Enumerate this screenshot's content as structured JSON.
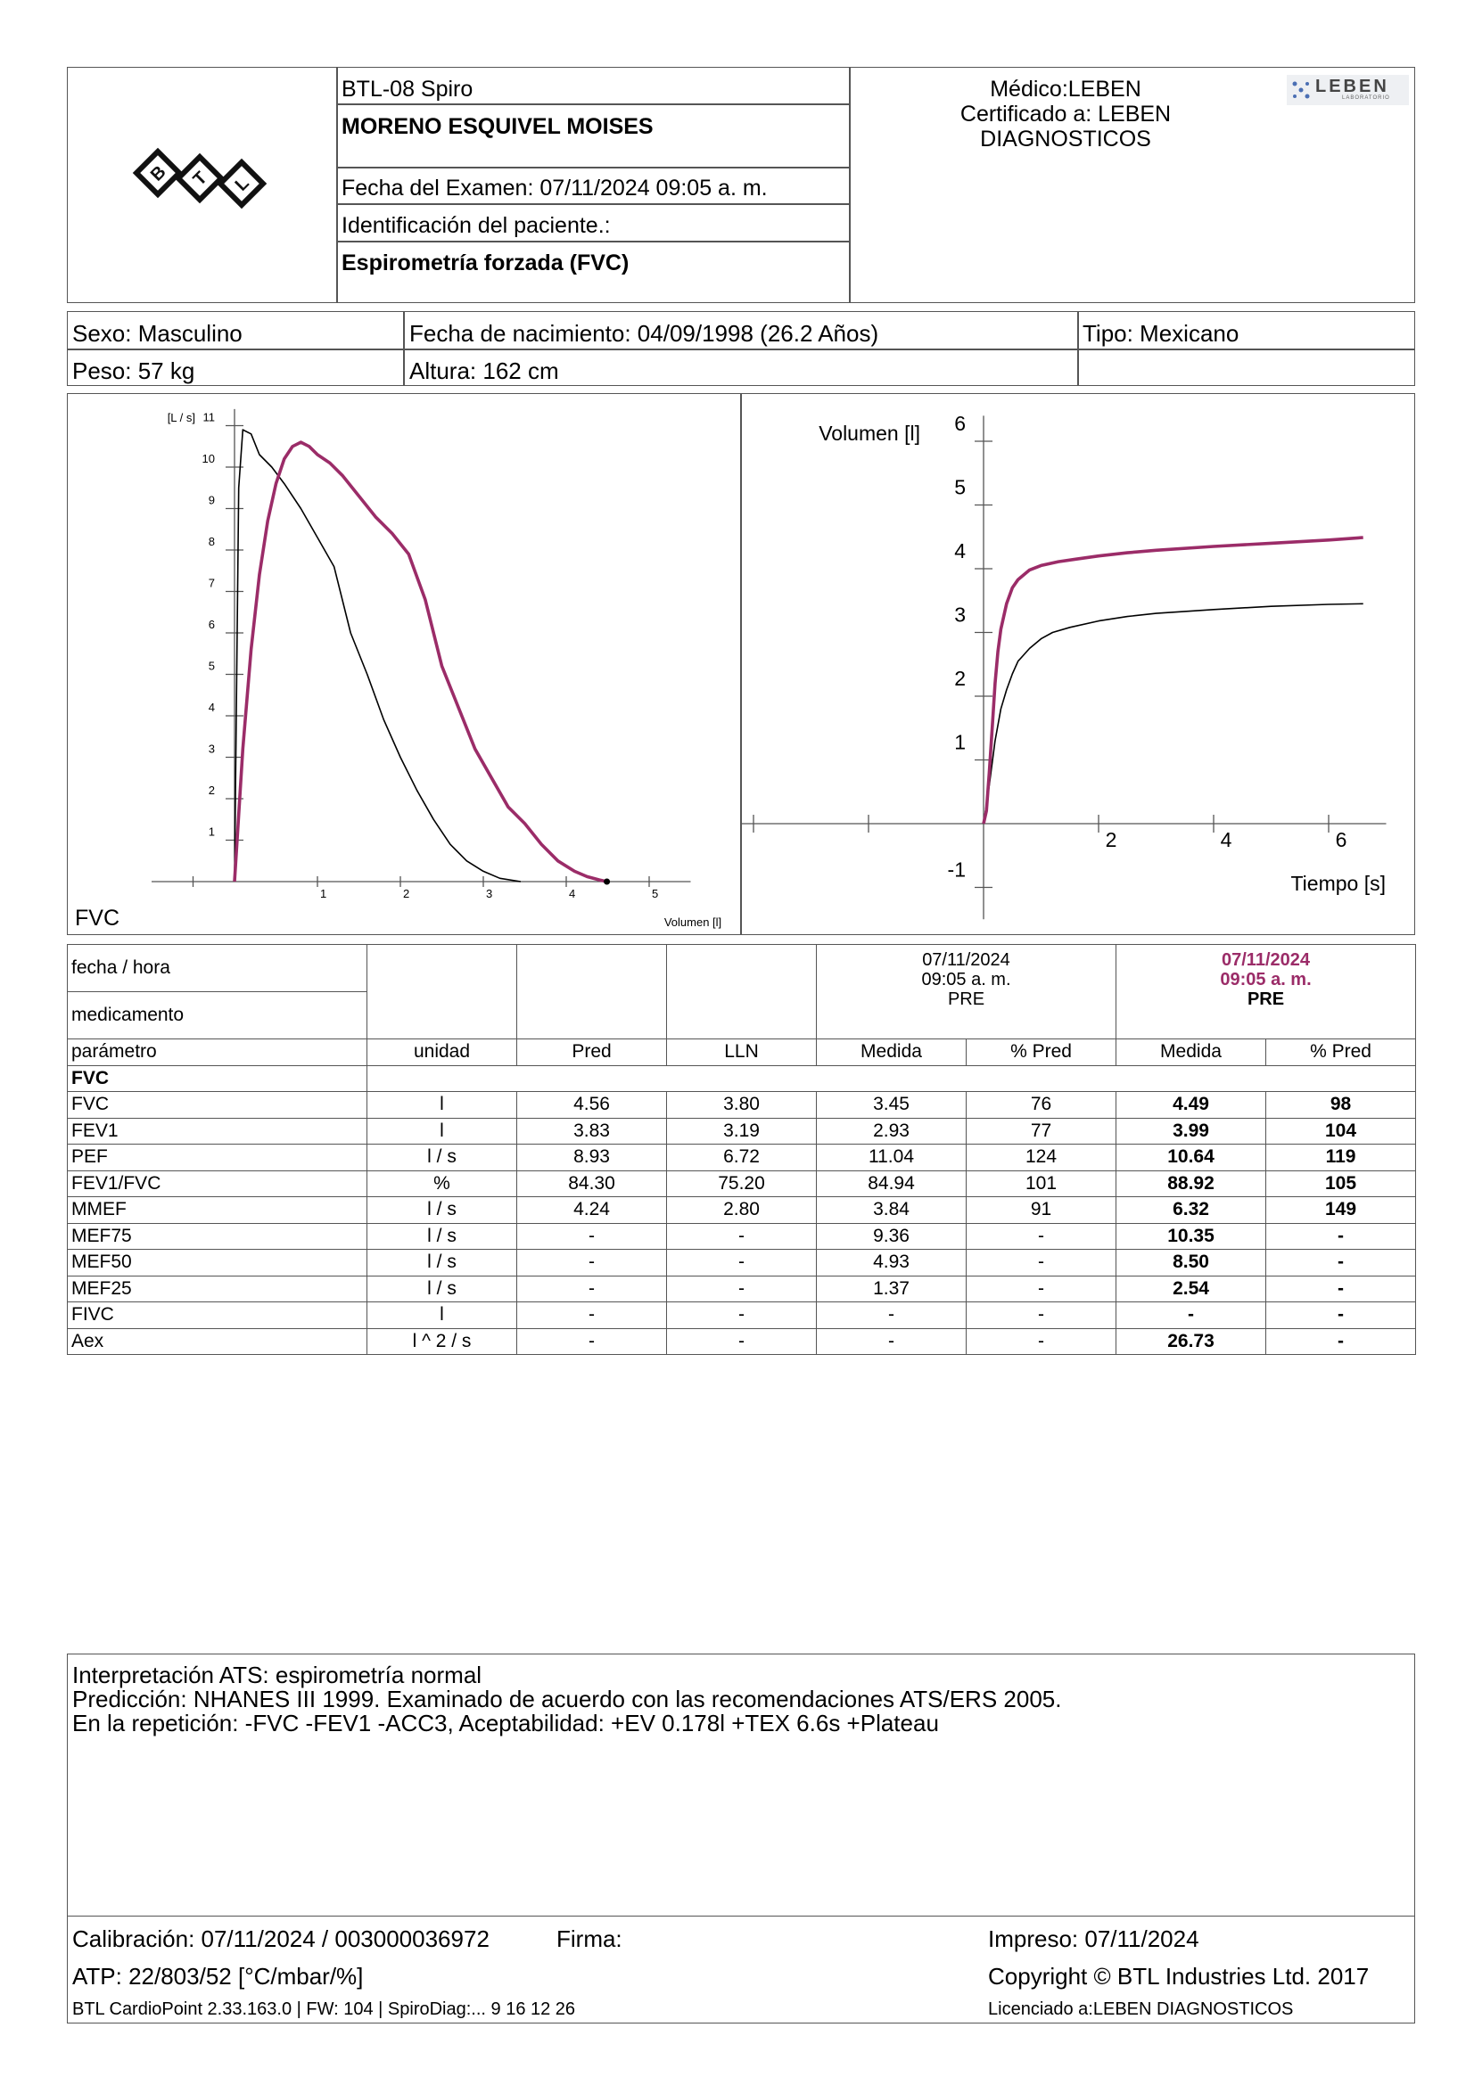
{
  "header": {
    "device": "BTL-08 Spiro",
    "patient_name": "MORENO ESQUIVEL MOISES",
    "exam_date": "Fecha del Examen:  07/11/2024 09:05 a. m.",
    "patient_id": "Identificación del paciente.:",
    "test_type": "Espirometría forzada (FVC)",
    "doctor_line1": "Médico:LEBEN",
    "doctor_line2": "Certificado a: LEBEN",
    "doctor_line3": "DIAGNOSTICOS",
    "lab_logo_text": "LEBEN",
    "lab_logo_sub": "LABORATORIO",
    "logo_text": "BTL"
  },
  "patient": {
    "sex": "Sexo: Masculino",
    "birth": "Fecha de nacimiento: 04/09/1998 (26.2 Años)",
    "type": "Tipo: Mexicano",
    "weight": "Peso: 57 kg",
    "height": "Altura: 162 cm"
  },
  "chart_data": [
    {
      "type": "line",
      "panel_label": "FVC",
      "ylabel": "[L / s]",
      "xlabel": "Volumen [l]",
      "xlim": [
        -1,
        5.5
      ],
      "ylim": [
        0,
        11
      ],
      "x_ticks": [
        "1",
        "2",
        "3",
        "4",
        "5"
      ],
      "y_ticks": [
        "1",
        "2",
        "3",
        "4",
        "5",
        "6",
        "7",
        "8",
        "9",
        "10",
        "11"
      ],
      "series": [
        {
          "color": "#000000",
          "x": [
            0,
            0.05,
            0.1,
            0.2,
            0.3,
            0.45,
            0.6,
            0.8,
            1.0,
            1.2,
            1.4,
            1.6,
            1.8,
            2.0,
            2.2,
            2.4,
            2.6,
            2.8,
            3.0,
            3.2,
            3.45
          ],
          "y": [
            0,
            9.5,
            10.9,
            10.8,
            10.3,
            10.0,
            9.6,
            9.0,
            8.3,
            7.6,
            6.0,
            5.0,
            3.9,
            3.0,
            2.2,
            1.5,
            0.9,
            0.5,
            0.25,
            0.08,
            0
          ]
        },
        {
          "color": "#9b2c68",
          "x": [
            0,
            0.1,
            0.2,
            0.3,
            0.4,
            0.5,
            0.6,
            0.7,
            0.8,
            0.9,
            1.0,
            1.15,
            1.3,
            1.5,
            1.7,
            1.9,
            2.1,
            2.3,
            2.5,
            2.7,
            2.9,
            3.1,
            3.3,
            3.5,
            3.7,
            3.9,
            4.1,
            4.25,
            4.4,
            4.49
          ],
          "y": [
            0,
            3.2,
            5.6,
            7.4,
            8.7,
            9.6,
            10.2,
            10.5,
            10.6,
            10.5,
            10.3,
            10.1,
            9.8,
            9.3,
            8.8,
            8.4,
            7.9,
            6.8,
            5.2,
            4.2,
            3.2,
            2.5,
            1.8,
            1.4,
            0.9,
            0.5,
            0.25,
            0.12,
            0.04,
            0
          ]
        }
      ]
    },
    {
      "type": "line",
      "ylabel": "Volumen [l]",
      "xlabel": "Tiempo [s]",
      "xlim": [
        -4,
        7
      ],
      "ylim": [
        -1.5,
        6.5
      ],
      "x_ticks": [
        "2",
        "4",
        "6"
      ],
      "y_ticks": [
        "-1",
        "1",
        "2",
        "3",
        "4",
        "5",
        "6"
      ],
      "series": [
        {
          "color": "#000000",
          "x": [
            0,
            0.1,
            0.2,
            0.3,
            0.4,
            0.5,
            0.6,
            0.8,
            1.0,
            1.2,
            1.5,
            2.0,
            2.5,
            3.0,
            4.0,
            5.0,
            6.0,
            6.6
          ],
          "y": [
            0,
            0.6,
            1.3,
            1.8,
            2.1,
            2.35,
            2.55,
            2.75,
            2.9,
            3.0,
            3.08,
            3.18,
            3.25,
            3.3,
            3.36,
            3.41,
            3.44,
            3.45
          ]
        },
        {
          "color": "#9b2c68",
          "x": [
            0,
            0.05,
            0.1,
            0.15,
            0.2,
            0.25,
            0.3,
            0.4,
            0.5,
            0.6,
            0.8,
            1.0,
            1.3,
            1.6,
            2.0,
            2.5,
            3.0,
            4.0,
            5.0,
            6.0,
            6.6
          ],
          "y": [
            0,
            0.2,
            0.8,
            1.5,
            2.2,
            2.7,
            3.05,
            3.45,
            3.7,
            3.83,
            3.98,
            4.05,
            4.11,
            4.15,
            4.2,
            4.25,
            4.29,
            4.35,
            4.4,
            4.45,
            4.49
          ]
        }
      ]
    }
  ],
  "results": {
    "row_date": "fecha / hora",
    "row_med": "medicamento",
    "col_a_date": "07/11/2024",
    "col_a_time": "09:05 a. m.",
    "col_a_med": "PRE",
    "col_b_date": "07/11/2024",
    "col_b_time": "09:05 a. m.",
    "col_b_med": "PRE",
    "headers": [
      "parámetro",
      "unidad",
      "Pred",
      "LLN",
      "Medida",
      "% Pred",
      "Medida",
      "% Pred"
    ],
    "section": "FVC",
    "rows": [
      [
        "FVC",
        "l",
        "4.56",
        "3.80",
        "3.45",
        "76",
        "4.49",
        "98"
      ],
      [
        "FEV1",
        "l",
        "3.83",
        "3.19",
        "2.93",
        "77",
        "3.99",
        "104"
      ],
      [
        "PEF",
        "l / s",
        "8.93",
        "6.72",
        "11.04",
        "124",
        "10.64",
        "119"
      ],
      [
        "FEV1/FVC",
        "%",
        "84.30",
        "75.20",
        "84.94",
        "101",
        "88.92",
        "105"
      ],
      [
        "MMEF",
        "l / s",
        "4.24",
        "2.80",
        "3.84",
        "91",
        "6.32",
        "149"
      ],
      [
        "MEF75",
        "l / s",
        "-",
        "-",
        "9.36",
        "-",
        "10.35",
        "-"
      ],
      [
        "MEF50",
        "l / s",
        "-",
        "-",
        "4.93",
        "-",
        "8.50",
        "-"
      ],
      [
        "MEF25",
        "l / s",
        "-",
        "-",
        "1.37",
        "-",
        "2.54",
        "-"
      ],
      [
        "FIVC",
        "l",
        "-",
        "-",
        "-",
        "-",
        "-",
        "-"
      ],
      [
        "Aex",
        "l ^ 2 / s",
        "-",
        "-",
        "-",
        "-",
        "26.73",
        "-"
      ]
    ]
  },
  "interpretation": {
    "line1": "Interpretación ATS: espirometría normal",
    "line2": "Predicción: NHANES III 1999. Examinado de acuerdo con las recomendaciones ATS/ERS 2005.",
    "line3": "En la repetición: -FVC -FEV1 -ACC3, Aceptabilidad: +EV 0.178l +TEX 6.6s +Plateau"
  },
  "footer": {
    "calibration": "Calibración: 07/11/2024 / 003000036972",
    "signature": "Firma:",
    "printed": "Impreso: 07/11/2024",
    "atp": "ATP: 22/803/52 [°C/mbar/%]",
    "copyright": "Copyright © BTL Industries Ltd. 2017",
    "software": "BTL CardioPoint 2.33.163.0 | FW: 104 | SpiroDiag:... 9 16 12 26",
    "license": "Licenciado a:LEBEN DIAGNOSTICOS"
  },
  "colors": {
    "accent": "#9b2c68",
    "border": "#555555"
  }
}
